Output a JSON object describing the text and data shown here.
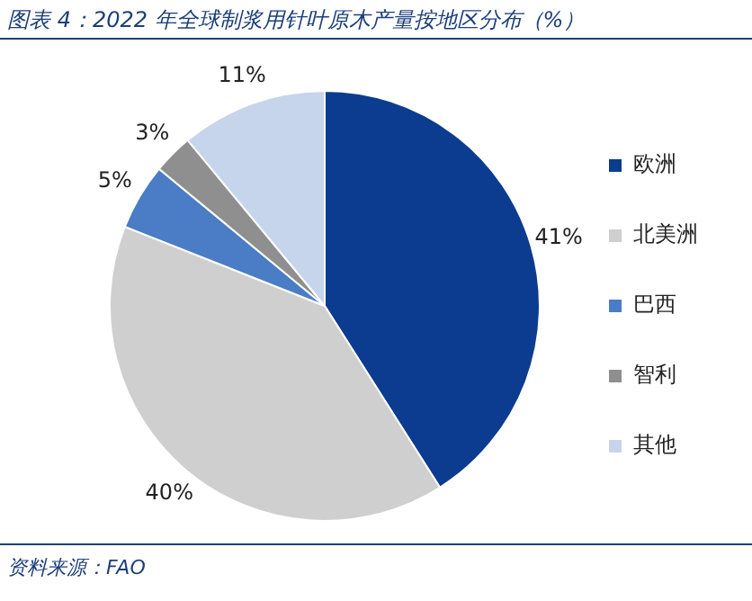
{
  "chart_data": {
    "type": "pie",
    "title": "图表 4：2022 年全球制浆用针叶原木产量按地区分布（%）",
    "categories": [
      "欧洲",
      "北美洲",
      "巴西",
      "智利",
      "其他"
    ],
    "values": [
      41,
      40,
      5,
      3,
      11
    ],
    "colors": [
      "#0c3c8f",
      "#cfcfcf",
      "#4a7dc6",
      "#8f8f8f",
      "#c6d5ec"
    ],
    "value_labels": [
      "41%",
      "40%",
      "5%",
      "3%",
      "11%"
    ],
    "legend": "right",
    "annotations": [
      "资料来源：FAO"
    ]
  }
}
